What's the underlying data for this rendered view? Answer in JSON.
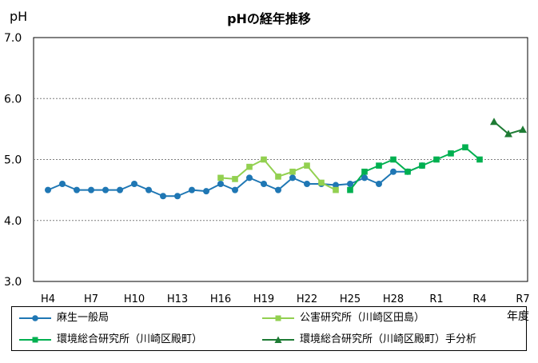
{
  "chart_data": {
    "type": "line",
    "title": "pHの経年推移",
    "ylabel": "pH",
    "xlabel": "年度",
    "ylim": [
      3.0,
      7.0
    ],
    "yticks": [
      "3.0",
      "4.0",
      "5.0",
      "6.0",
      "7.0"
    ],
    "grid": true,
    "legend_position": "bottom",
    "x_index": [
      "H4",
      "H5",
      "H6",
      "H7",
      "H8",
      "H9",
      "H10",
      "H11",
      "H12",
      "H13",
      "H14",
      "H15",
      "H16",
      "H17",
      "H18",
      "H19",
      "H20",
      "H21",
      "H22",
      "H23",
      "H24",
      "H25",
      "H26",
      "H27",
      "H28",
      "H29",
      "H30",
      "R1",
      "R2",
      "R3",
      "R4",
      "R5",
      "R6",
      "R7"
    ],
    "xtick_labels": [
      "H4",
      "H7",
      "H10",
      "H13",
      "H16",
      "H19",
      "H22",
      "H25",
      "H28",
      "R1",
      "R4",
      "R7"
    ],
    "series": [
      {
        "name": "麻生一般局",
        "color": "#1f77b4",
        "marker": "circle",
        "x": [
          "H4",
          "H5",
          "H6",
          "H7",
          "H8",
          "H9",
          "H10",
          "H11",
          "H12",
          "H13",
          "H14",
          "H15",
          "H16",
          "H17",
          "H18",
          "H19",
          "H20",
          "H21",
          "H22",
          "H23",
          "H24",
          "H25",
          "H26",
          "H27",
          "H28",
          "H29",
          "H30"
        ],
        "values": [
          4.5,
          4.6,
          4.5,
          4.5,
          4.5,
          4.5,
          4.6,
          4.5,
          4.4,
          4.4,
          4.5,
          4.48,
          4.6,
          4.5,
          4.7,
          4.6,
          4.5,
          4.7,
          4.6,
          4.6,
          4.58,
          4.6,
          4.7,
          4.6,
          4.8,
          4.8,
          4.9
        ]
      },
      {
        "name": "公害研究所（川崎区田島）",
        "color": "#92d050",
        "marker": "square",
        "x": [
          "H16",
          "H17",
          "H18",
          "H19",
          "H20",
          "H21",
          "H22",
          "H23",
          "H24"
        ],
        "values": [
          4.7,
          4.68,
          4.88,
          5.0,
          4.72,
          4.8,
          4.9,
          4.62,
          4.5
        ]
      },
      {
        "name": "環境総合研究所（川崎区殿町）",
        "color": "#00b050",
        "marker": "square",
        "x": [
          "H25",
          "H26",
          "H27",
          "H28",
          "H29",
          "H30",
          "R1",
          "R2",
          "R3",
          "R4"
        ],
        "values": [
          4.5,
          4.8,
          4.9,
          5.0,
          4.8,
          4.9,
          5.0,
          5.1,
          5.2,
          5.0
        ]
      },
      {
        "name": "環境総合研究所（川崎区殿町）手分析",
        "color": "#1e7b34",
        "marker": "triangle",
        "x": [
          "R5",
          "R6",
          "R7"
        ],
        "values": [
          5.62,
          5.42,
          5.49
        ]
      }
    ]
  }
}
